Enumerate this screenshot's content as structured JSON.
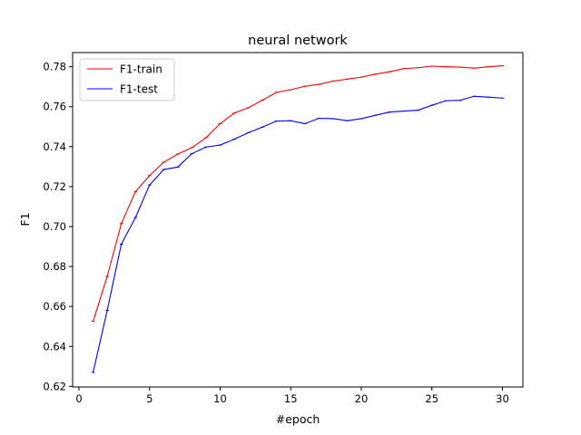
{
  "chart_data": {
    "type": "line",
    "title": "neural network",
    "xlabel": "#epoch",
    "ylabel": "F1",
    "xlim": [
      -0.45,
      31.45
    ],
    "ylim": [
      0.6197,
      0.7871
    ],
    "xticks": [
      0,
      5,
      10,
      15,
      20,
      25,
      30
    ],
    "yticks": [
      0.62,
      0.64,
      0.66,
      0.68,
      0.7,
      0.72,
      0.74,
      0.76,
      0.78
    ],
    "ytick_labels": [
      "0.62",
      "0.64",
      "0.66",
      "0.68",
      "0.70",
      "0.72",
      "0.74",
      "0.76",
      "0.78"
    ],
    "grid": false,
    "legend_position": "top-left",
    "x": [
      1,
      2,
      3,
      4,
      5,
      6,
      7,
      8,
      9,
      10,
      11,
      12,
      13,
      14,
      15,
      16,
      17,
      18,
      19,
      20,
      21,
      22,
      23,
      24,
      25,
      26,
      27,
      28,
      29,
      30
    ],
    "series": [
      {
        "name": "F1-train",
        "color": "#ff0000",
        "values": [
          0.6525,
          0.675,
          0.7015,
          0.7175,
          0.7255,
          0.7322,
          0.7363,
          0.7395,
          0.7445,
          0.7515,
          0.7568,
          0.7595,
          0.7633,
          0.7672,
          0.7685,
          0.7702,
          0.7712,
          0.7728,
          0.7738,
          0.7748,
          0.7763,
          0.7775,
          0.779,
          0.7795,
          0.7803,
          0.78,
          0.7798,
          0.7793,
          0.78,
          0.7805
        ]
      },
      {
        "name": "F1-test",
        "color": "#0000ff",
        "values": [
          0.627,
          0.658,
          0.6912,
          0.7045,
          0.7208,
          0.7285,
          0.7298,
          0.7365,
          0.7398,
          0.7408,
          0.7437,
          0.747,
          0.7498,
          0.7528,
          0.753,
          0.7515,
          0.7542,
          0.754,
          0.753,
          0.754,
          0.7557,
          0.7573,
          0.7578,
          0.7582,
          0.7607,
          0.763,
          0.7632,
          0.7652,
          0.7648,
          0.7643
        ]
      }
    ]
  }
}
